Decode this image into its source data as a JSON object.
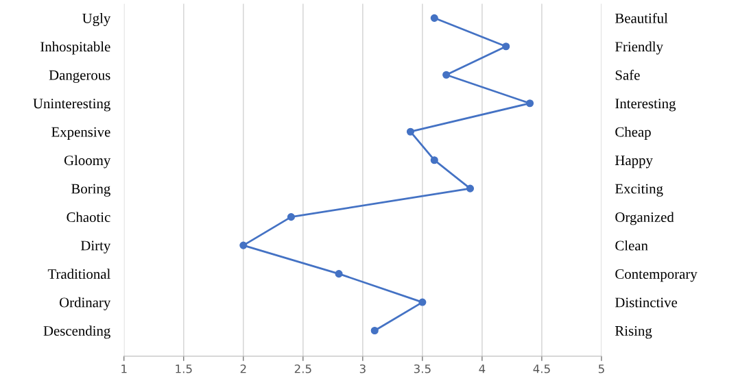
{
  "chart_data": {
    "type": "line",
    "orientation": "horizontal",
    "categories": [
      "Ugly",
      "Inhospitable",
      "Dangerous",
      "Uninteresting",
      "Expensive",
      "Gloomy",
      "Boring",
      "Chaotic",
      "Dirty",
      "Traditional",
      "Ordinary",
      "Descending"
    ],
    "y2_categories": [
      "Beautiful",
      "Friendly",
      "Safe",
      "Interesting",
      "Cheap",
      "Happy",
      "Exciting",
      "Organized",
      "Clean",
      "Contemporary",
      "Distinctive",
      "Rising"
    ],
    "series": [
      {
        "color": "#4472c4",
        "values": [
          3.6,
          4.2,
          3.7,
          4.4,
          3.4,
          3.6,
          3.9,
          2.4,
          2.0,
          2.8,
          3.5,
          3.1
        ]
      }
    ],
    "xlim": [
      1,
      5
    ],
    "xticks": [
      1,
      1.5,
      2,
      2.5,
      3,
      3.5,
      4,
      4.5,
      5
    ],
    "grid": "x",
    "marker": "circle",
    "line_style": "solid"
  }
}
